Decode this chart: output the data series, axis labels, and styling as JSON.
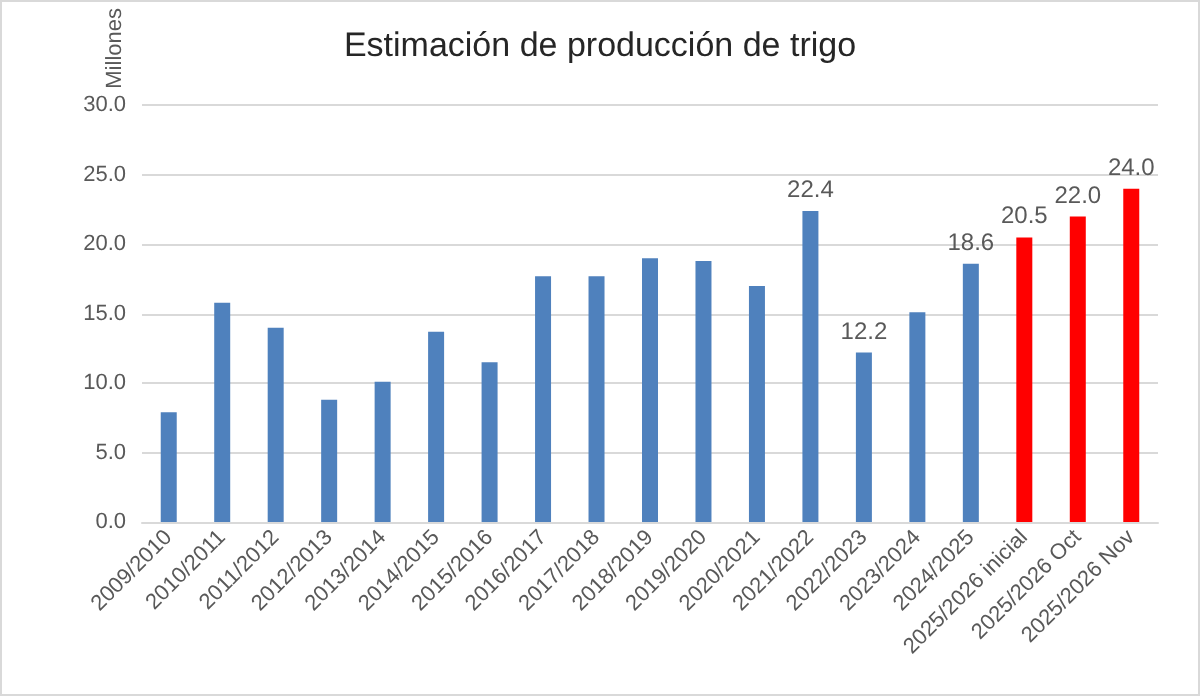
{
  "chart_data": {
    "type": "bar",
    "title": "Estimación de producción de trigo",
    "ylabel": "Millones",
    "categories": [
      "2009/2010",
      "2010/2011",
      "2011/2012",
      "2012/2013",
      "2013/2014",
      "2014/2015",
      "2015/2016",
      "2016/2017",
      "2017/2018",
      "2018/2019",
      "2019/2020",
      "2020/2021",
      "2021/2022",
      "2022/2023",
      "2023/2024",
      "2024/2025",
      "2025/2026 inicial",
      "2025/2026 Oct",
      "2025/2026 Nov"
    ],
    "values": [
      7.9,
      15.8,
      14.0,
      8.8,
      10.1,
      13.7,
      11.5,
      17.7,
      17.7,
      19.0,
      18.8,
      17.0,
      22.4,
      12.2,
      15.1,
      18.6,
      20.5,
      22.0,
      24.0
    ],
    "colors": [
      "#4f81bd",
      "#4f81bd",
      "#4f81bd",
      "#4f81bd",
      "#4f81bd",
      "#4f81bd",
      "#4f81bd",
      "#4f81bd",
      "#4f81bd",
      "#4f81bd",
      "#4f81bd",
      "#4f81bd",
      "#4f81bd",
      "#4f81bd",
      "#4f81bd",
      "#4f81bd",
      "#ff0000",
      "#ff0000",
      "#ff0000"
    ],
    "value_labels": [
      null,
      null,
      null,
      null,
      null,
      null,
      null,
      null,
      null,
      null,
      null,
      null,
      "22.4",
      "12.2",
      null,
      "18.6",
      "20.5",
      "22.0",
      "24.0"
    ],
    "ylim": [
      0,
      30
    ],
    "yticks": [
      {
        "value": 0,
        "label": "0.0"
      },
      {
        "value": 5,
        "label": "5.0"
      },
      {
        "value": 10,
        "label": "10.0"
      },
      {
        "value": 15,
        "label": "15.0"
      },
      {
        "value": 20,
        "label": "20.0"
      },
      {
        "value": 25,
        "label": "25.0"
      },
      {
        "value": 30,
        "label": "30.0"
      }
    ],
    "grid": "y"
  }
}
